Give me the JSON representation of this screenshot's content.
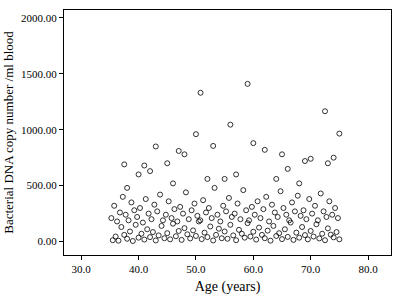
{
  "chart_data": {
    "type": "scatter",
    "x_label": "Age (years)",
    "y_label": "Bacterial DNA copy number /ml blood",
    "color": "#000000",
    "marker": "circle-open",
    "grid": false,
    "xlim": [
      27,
      84
    ],
    "ylim": [
      -120,
      2070
    ],
    "xticks": [
      {
        "value": 30,
        "label": "30.0"
      },
      {
        "value": 40,
        "label": "40.0"
      },
      {
        "value": 50,
        "label": "50.0"
      },
      {
        "value": 60,
        "label": "60.0"
      },
      {
        "value": 70,
        "label": "70.0"
      },
      {
        "value": 80,
        "label": "80.0"
      }
    ],
    "yticks": [
      {
        "value": 0,
        "label": "0.00"
      },
      {
        "value": 500,
        "label": "500.00"
      },
      {
        "value": 1000,
        "label": "1000.00"
      },
      {
        "value": 1500,
        "label": "1500.00"
      },
      {
        "value": 2000,
        "label": "2000.00"
      }
    ],
    "x": [
      35.5,
      36,
      36.5,
      37,
      37.5,
      38,
      38.5,
      39,
      39.5,
      40,
      40.5,
      41,
      41.5,
      42,
      42.5,
      43,
      43.5,
      44,
      44.5,
      45,
      45.5,
      46,
      46.5,
      47,
      47.5,
      48,
      48.5,
      49,
      49.5,
      50,
      50.5,
      51,
      51.5,
      52,
      52.5,
      53,
      53.5,
      54,
      54.5,
      55,
      55.5,
      56,
      56.5,
      57,
      57.5,
      58,
      58.5,
      59,
      59.5,
      60,
      60.5,
      61,
      61.5,
      62,
      62.5,
      63,
      63.5,
      64,
      64.5,
      65,
      65.5,
      66,
      66.5,
      67,
      67.5,
      68,
      68.5,
      69,
      69.5,
      70,
      70.5,
      71,
      71.5,
      72,
      72.5,
      73,
      73.5,
      74,
      74.5,
      75,
      35.25,
      35.75,
      36.25,
      36.75,
      37.25,
      37.75,
      38.25,
      38.75,
      39.25,
      39.75,
      40.25,
      40.75,
      41.25,
      41.75,
      42.25,
      42.75,
      43.25,
      43.75,
      44.25,
      44.75,
      45.25,
      45.75,
      46.25,
      46.75,
      47.25,
      47.75,
      48.25,
      48.75,
      49.25,
      49.75,
      50.25,
      50.75,
      51.25,
      51.75,
      52.25,
      52.75,
      53.25,
      53.75,
      54.25,
      54.75,
      55.25,
      55.75,
      56.25,
      56.75,
      57.25,
      57.75,
      58.25,
      58.75,
      59.25,
      59.75,
      60.25,
      60.75,
      61.25,
      61.75,
      62.25,
      62.75,
      63.25,
      63.75,
      64.25,
      64.75,
      65.25,
      65.75,
      66.25,
      66.75,
      67.25,
      67.75,
      68.25,
      68.75,
      69.25,
      69.75,
      70.25,
      70.75,
      71.25,
      71.75,
      72.25,
      72.75,
      73.25,
      73.75,
      74.25,
      74.75,
      37.5,
      38,
      40,
      41,
      42,
      43,
      45,
      47,
      48,
      50,
      50.8,
      52,
      53,
      55,
      56,
      59,
      60,
      62,
      64,
      65,
      66,
      69,
      70,
      72.5,
      73,
      74,
      75,
      46,
      57,
      68
    ],
    "y": [
      12,
      45,
      8,
      130,
      60,
      25,
      90,
      5,
      150,
      35,
      70,
      18,
      110,
      40,
      85,
      10,
      55,
      140,
      30,
      75,
      20,
      160,
      48,
      95,
      15,
      120,
      65,
      28,
      100,
      50,
      180,
      22,
      80,
      40,
      135,
      10,
      60,
      115,
      30,
      90,
      25,
      150,
      55,
      12,
      105,
      70,
      35,
      165,
      45,
      88,
      18,
      125,
      60,
      30,
      98,
      8,
      140,
      50,
      75,
      22,
      110,
      42,
      170,
      15,
      80,
      35,
      130,
      58,
      20,
      95,
      45,
      155,
      28,
      70,
      12,
      118,
      62,
      38,
      85,
      20,
      210,
      320,
      180,
      260,
      400,
      240,
      190,
      350,
      280,
      220,
      300,
      170,
      380,
      250,
      200,
      330,
      270,
      420,
      190,
      240,
      360,
      210,
      290,
      180,
      310,
      250,
      440,
      200,
      280,
      340,
      230,
      190,
      370,
      260,
      300,
      210,
      480,
      240,
      180,
      320,
      270,
      390,
      220,
      250,
      340,
      200,
      460,
      280,
      190,
      310,
      240,
      360,
      210,
      290,
      400,
      180,
      330,
      260,
      220,
      450,
      300,
      240,
      190,
      350,
      270,
      410,
      230,
      280,
      200,
      380,
      250,
      320,
      190,
      430,
      270,
      220,
      360,
      240,
      300,
      210,
      690,
      480,
      600,
      680,
      630,
      850,
      700,
      810,
      780,
      960,
      1330,
      560,
      855,
      560,
      1045,
      1410,
      880,
      820,
      560,
      780,
      650,
      720,
      740,
      1165,
      700,
      750,
      965,
      520,
      600,
      520
    ]
  }
}
